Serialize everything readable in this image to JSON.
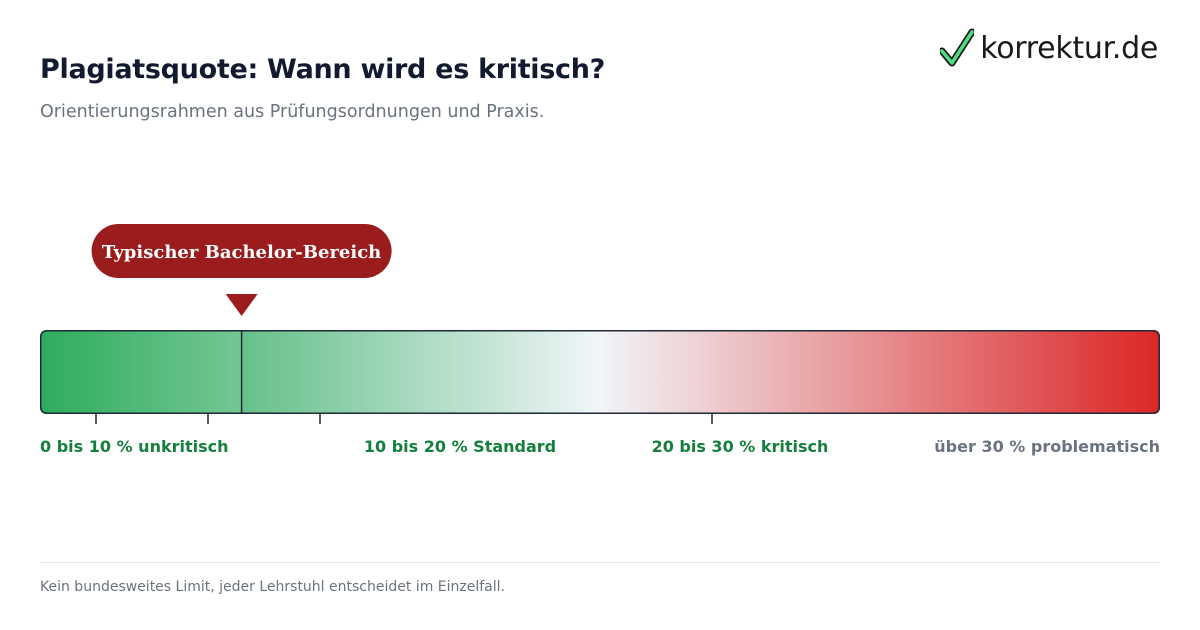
{
  "header": {
    "title": "Plagiatsquote: Wann wird es kritisch?",
    "subtitle": "Orientierungsrahmen aus Prüfungsordnungen und Praxis."
  },
  "logo": {
    "text": "korrektur.de",
    "icon": "checkmark-icon"
  },
  "footer": {
    "note": "Kein bundesweites Limit, jeder Lehrstuhl entscheidet im Einzelfall."
  },
  "colors": {
    "green": "#16a34a",
    "neutral": "#f1f5f9",
    "red": "#dc2626",
    "callout": "#9b1c1c",
    "label_green": "#15803d",
    "label_gray": "#6b7280"
  },
  "chart_data": {
    "type": "gauge",
    "scale": [
      0,
      40
    ],
    "highlight_range": [
      0,
      7.2
    ],
    "callout": {
      "label": "Typischer Bachelor-Bereich",
      "value": 7.2
    },
    "ticks": [
      2,
      6,
      10,
      24
    ],
    "bands": [
      {
        "label": "0 bis 10 % unkritisch",
        "from": 0,
        "to": 10
      },
      {
        "label": "10 bis 20 % Standard",
        "from": 10,
        "to": 20
      },
      {
        "label": "20 bis 30 % kritisch",
        "from": 20,
        "to": 30
      },
      {
        "label": "über 30 % problematisch",
        "from": 30,
        "to": 40
      }
    ]
  }
}
